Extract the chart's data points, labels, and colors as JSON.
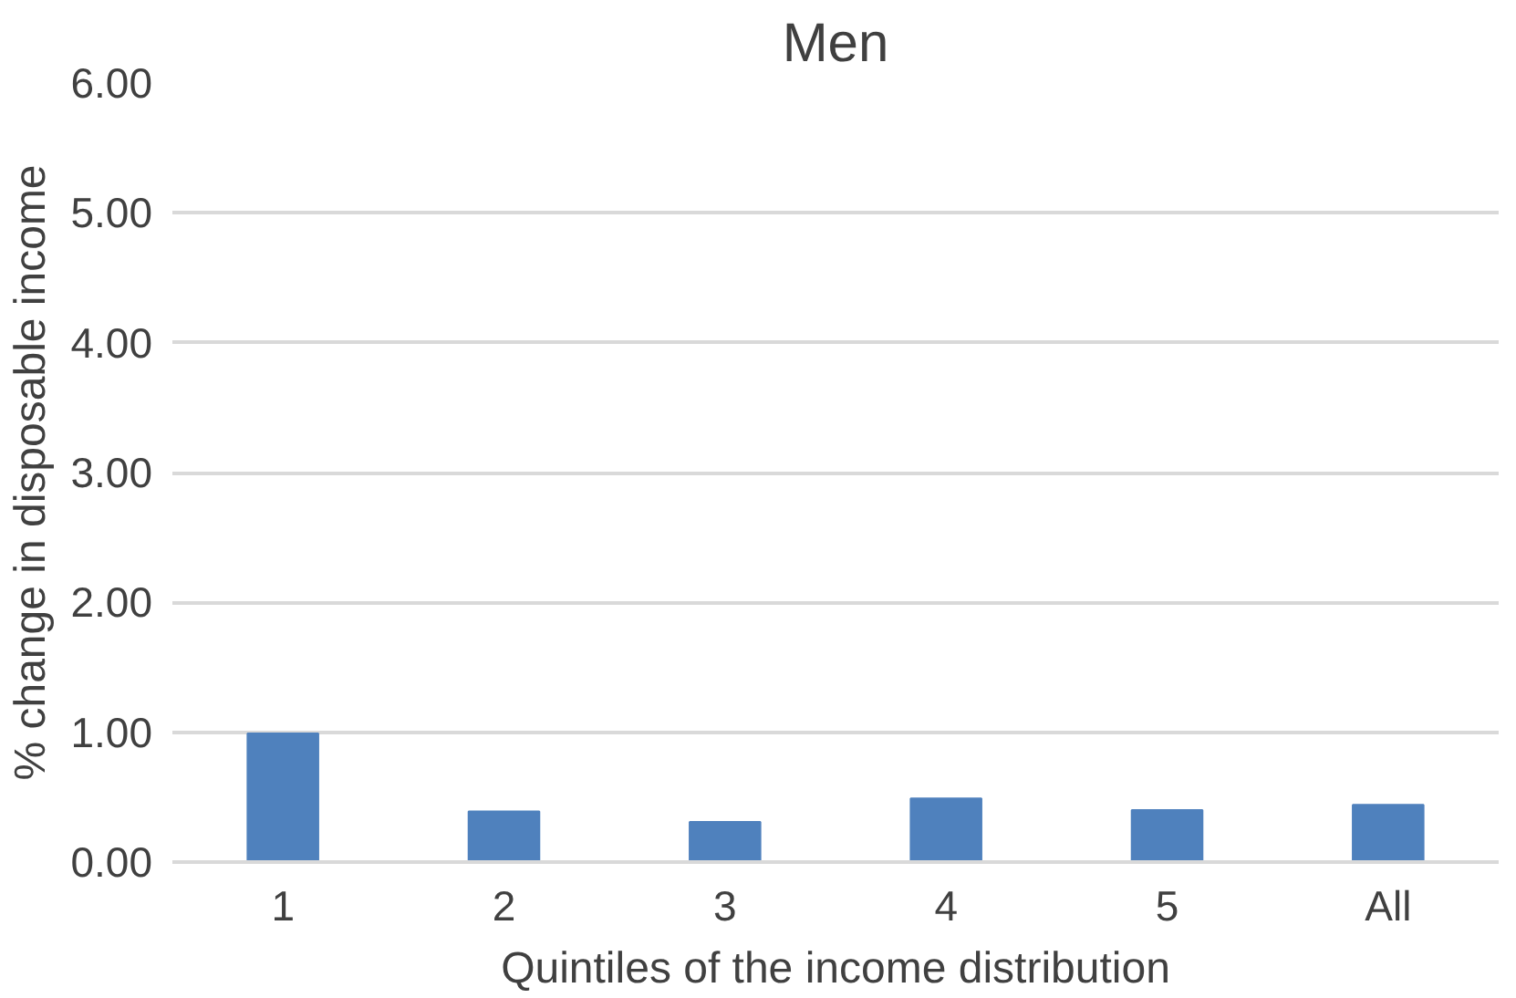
{
  "chart_data": {
    "type": "bar",
    "title": "Men",
    "xlabel": "Quintiles of the income distribution",
    "ylabel": "% change in disposable income",
    "categories": [
      "1",
      "2",
      "3",
      "4",
      "5",
      "All"
    ],
    "values": [
      0.99,
      0.39,
      0.31,
      0.49,
      0.4,
      0.44
    ],
    "color": "#4f81bd",
    "ylim": [
      0,
      6
    ],
    "yticks": [
      {
        "value": 0,
        "label": "0.00"
      },
      {
        "value": 1,
        "label": "1.00"
      },
      {
        "value": 2,
        "label": "2.00"
      },
      {
        "value": 3,
        "label": "3.00"
      },
      {
        "value": 4,
        "label": "4.00"
      },
      {
        "value": 5,
        "label": "5.00"
      },
      {
        "value": 6,
        "label": "6.00"
      }
    ],
    "grid": "y"
  }
}
